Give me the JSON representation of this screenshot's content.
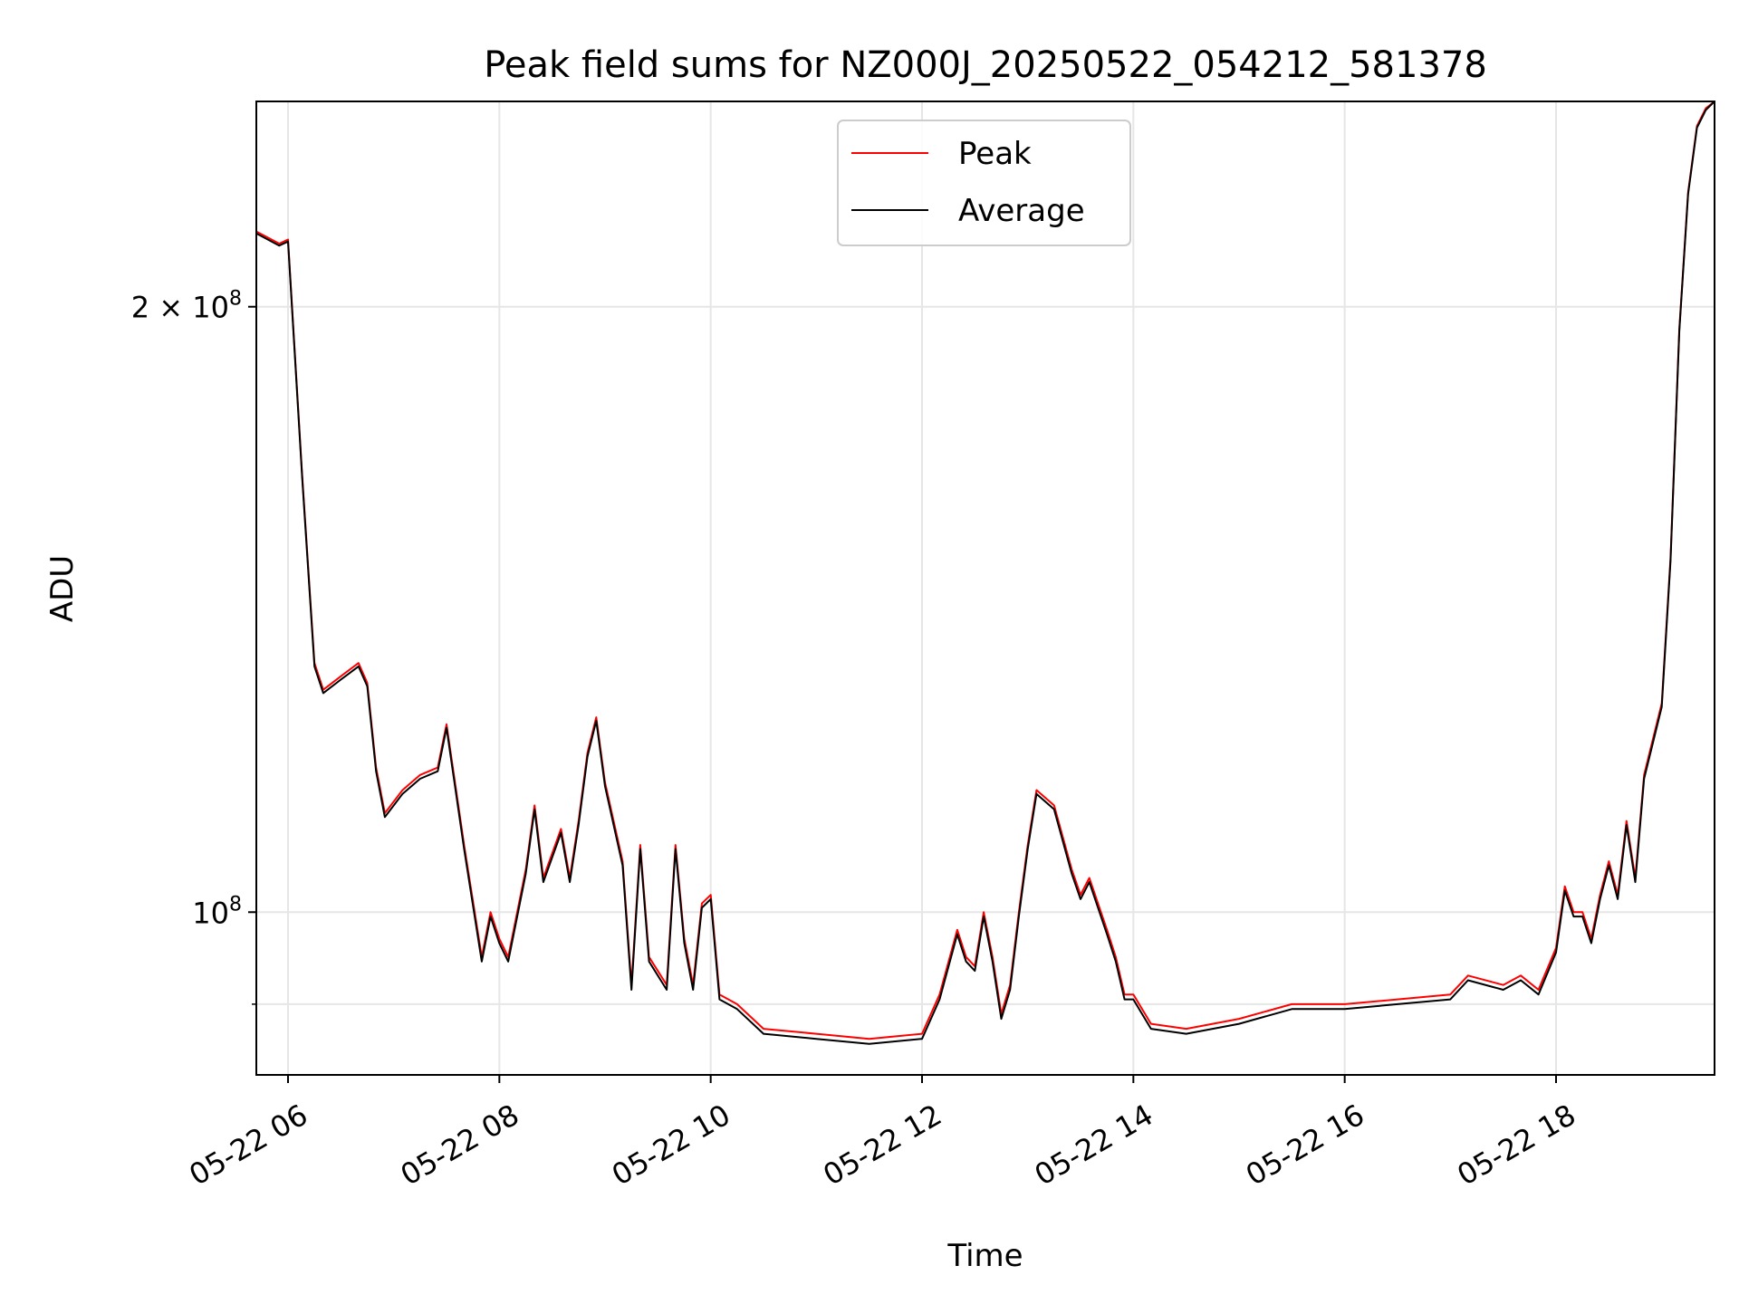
{
  "chart_data": {
    "type": "line",
    "title": "Peak field sums for NZ000J_20250522_054212_581378",
    "xlabel": "Time",
    "ylabel": "ADU",
    "y_scale": "log",
    "grid": true,
    "legend_position": "top-center",
    "xlim": [
      "2025-05-22 05:42",
      "2025-05-22 19:30"
    ],
    "ylim": [
      83000000,
      253000000
    ],
    "x_ticks": [
      {
        "t": "2025-05-22 06:00",
        "label": "05-22 06"
      },
      {
        "t": "2025-05-22 08:00",
        "label": "05-22 08"
      },
      {
        "t": "2025-05-22 10:00",
        "label": "05-22 10"
      },
      {
        "t": "2025-05-22 12:00",
        "label": "05-22 12"
      },
      {
        "t": "2025-05-22 14:00",
        "label": "05-22 14"
      },
      {
        "t": "2025-05-22 16:00",
        "label": "05-22 16"
      },
      {
        "t": "2025-05-22 18:00",
        "label": "05-22 18"
      }
    ],
    "y_major_ticks": [
      {
        "value": 100000000,
        "base": "10",
        "exp": "8"
      },
      {
        "value": 200000000,
        "coef": "2 × 10",
        "exp": "8"
      }
    ],
    "y_minor_ticks": [
      90000000
    ],
    "series": [
      {
        "name": "Peak",
        "color": "#ff0000",
        "points": [
          [
            "2025-05-22 05:42",
            218000000
          ],
          [
            "2025-05-22 05:55",
            215000000
          ],
          [
            "2025-05-22 06:00",
            216000000
          ],
          [
            "2025-05-22 06:08",
            165000000
          ],
          [
            "2025-05-22 06:15",
            133000000
          ],
          [
            "2025-05-22 06:20",
            129000000
          ],
          [
            "2025-05-22 06:30",
            131000000
          ],
          [
            "2025-05-22 06:40",
            133000000
          ],
          [
            "2025-05-22 06:45",
            130000000
          ],
          [
            "2025-05-22 06:50",
            118000000
          ],
          [
            "2025-05-22 06:55",
            112000000
          ],
          [
            "2025-05-22 07:05",
            115000000
          ],
          [
            "2025-05-22 07:15",
            117000000
          ],
          [
            "2025-05-22 07:25",
            118000000
          ],
          [
            "2025-05-22 07:30",
            124000000
          ],
          [
            "2025-05-22 07:40",
            108000000
          ],
          [
            "2025-05-22 07:50",
            95000000
          ],
          [
            "2025-05-22 07:55",
            100000000
          ],
          [
            "2025-05-22 08:00",
            97000000
          ],
          [
            "2025-05-22 08:05",
            95000000
          ],
          [
            "2025-05-22 08:15",
            105000000
          ],
          [
            "2025-05-22 08:20",
            113000000
          ],
          [
            "2025-05-22 08:25",
            104000000
          ],
          [
            "2025-05-22 08:35",
            110000000
          ],
          [
            "2025-05-22 08:40",
            104000000
          ],
          [
            "2025-05-22 08:45",
            111000000
          ],
          [
            "2025-05-22 08:50",
            120000000
          ],
          [
            "2025-05-22 08:55",
            125000000
          ],
          [
            "2025-05-22 09:00",
            116000000
          ],
          [
            "2025-05-22 09:10",
            106000000
          ],
          [
            "2025-05-22 09:15",
            92000000
          ],
          [
            "2025-05-22 09:20",
            108000000
          ],
          [
            "2025-05-22 09:25",
            95000000
          ],
          [
            "2025-05-22 09:35",
            92000000
          ],
          [
            "2025-05-22 09:40",
            108000000
          ],
          [
            "2025-05-22 09:45",
            97000000
          ],
          [
            "2025-05-22 09:50",
            92000000
          ],
          [
            "2025-05-22 09:55",
            101000000
          ],
          [
            "2025-05-22 10:00",
            102000000
          ],
          [
            "2025-05-22 10:05",
            91000000
          ],
          [
            "2025-05-22 10:15",
            90000000
          ],
          [
            "2025-05-22 10:30",
            87500000
          ],
          [
            "2025-05-22 11:00",
            87000000
          ],
          [
            "2025-05-22 11:30",
            86500000
          ],
          [
            "2025-05-22 12:00",
            87000000
          ],
          [
            "2025-05-22 12:10",
            91000000
          ],
          [
            "2025-05-22 12:20",
            98000000
          ],
          [
            "2025-05-22 12:25",
            95000000
          ],
          [
            "2025-05-22 12:30",
            94000000
          ],
          [
            "2025-05-22 12:35",
            100000000
          ],
          [
            "2025-05-22 12:40",
            95000000
          ],
          [
            "2025-05-22 12:45",
            89000000
          ],
          [
            "2025-05-22 12:50",
            92000000
          ],
          [
            "2025-05-22 12:55",
            100000000
          ],
          [
            "2025-05-22 13:00",
            108000000
          ],
          [
            "2025-05-22 13:05",
            115000000
          ],
          [
            "2025-05-22 13:15",
            113000000
          ],
          [
            "2025-05-22 13:25",
            105000000
          ],
          [
            "2025-05-22 13:30",
            102000000
          ],
          [
            "2025-05-22 13:35",
            104000000
          ],
          [
            "2025-05-22 13:45",
            98000000
          ],
          [
            "2025-05-22 13:50",
            95000000
          ],
          [
            "2025-05-22 13:55",
            91000000
          ],
          [
            "2025-05-22 14:00",
            91000000
          ],
          [
            "2025-05-22 14:10",
            88000000
          ],
          [
            "2025-05-22 14:30",
            87500000
          ],
          [
            "2025-05-22 15:00",
            88500000
          ],
          [
            "2025-05-22 15:30",
            90000000
          ],
          [
            "2025-05-22 16:00",
            90000000
          ],
          [
            "2025-05-22 16:30",
            90500000
          ],
          [
            "2025-05-22 17:00",
            91000000
          ],
          [
            "2025-05-22 17:10",
            93000000
          ],
          [
            "2025-05-22 17:30",
            92000000
          ],
          [
            "2025-05-22 17:40",
            93000000
          ],
          [
            "2025-05-22 17:50",
            91500000
          ],
          [
            "2025-05-22 18:00",
            96000000
          ],
          [
            "2025-05-22 18:05",
            103000000
          ],
          [
            "2025-05-22 18:10",
            100000000
          ],
          [
            "2025-05-22 18:15",
            100000000
          ],
          [
            "2025-05-22 18:20",
            97000000
          ],
          [
            "2025-05-22 18:25",
            102000000
          ],
          [
            "2025-05-22 18:30",
            106000000
          ],
          [
            "2025-05-22 18:35",
            102000000
          ],
          [
            "2025-05-22 18:40",
            111000000
          ],
          [
            "2025-05-22 18:45",
            104000000
          ],
          [
            "2025-05-22 18:50",
            117000000
          ],
          [
            "2025-05-22 19:00",
            127000000
          ],
          [
            "2025-05-22 19:05",
            150000000
          ],
          [
            "2025-05-22 19:10",
            195000000
          ],
          [
            "2025-05-22 19:15",
            228000000
          ],
          [
            "2025-05-22 19:20",
            246000000
          ],
          [
            "2025-05-22 19:25",
            251000000
          ],
          [
            "2025-05-22 19:30",
            253000000
          ]
        ]
      },
      {
        "name": "Average",
        "color": "#000000",
        "points": [
          [
            "2025-05-22 05:42",
            217500000
          ],
          [
            "2025-05-22 05:55",
            214500000
          ],
          [
            "2025-05-22 06:00",
            215500000
          ],
          [
            "2025-05-22 06:08",
            164500000
          ],
          [
            "2025-05-22 06:15",
            132500000
          ],
          [
            "2025-05-22 06:20",
            128500000
          ],
          [
            "2025-05-22 06:30",
            130500000
          ],
          [
            "2025-05-22 06:40",
            132500000
          ],
          [
            "2025-05-22 06:45",
            129500000
          ],
          [
            "2025-05-22 06:50",
            117500000
          ],
          [
            "2025-05-22 06:55",
            111500000
          ],
          [
            "2025-05-22 07:05",
            114500000
          ],
          [
            "2025-05-22 07:15",
            116500000
          ],
          [
            "2025-05-22 07:25",
            117500000
          ],
          [
            "2025-05-22 07:30",
            123500000
          ],
          [
            "2025-05-22 07:40",
            107500000
          ],
          [
            "2025-05-22 07:50",
            94500000
          ],
          [
            "2025-05-22 07:55",
            99500000
          ],
          [
            "2025-05-22 08:00",
            96500000
          ],
          [
            "2025-05-22 08:05",
            94500000
          ],
          [
            "2025-05-22 08:15",
            104500000
          ],
          [
            "2025-05-22 08:20",
            112500000
          ],
          [
            "2025-05-22 08:25",
            103500000
          ],
          [
            "2025-05-22 08:35",
            109500000
          ],
          [
            "2025-05-22 08:40",
            103500000
          ],
          [
            "2025-05-22 08:45",
            110500000
          ],
          [
            "2025-05-22 08:50",
            119500000
          ],
          [
            "2025-05-22 08:55",
            124500000
          ],
          [
            "2025-05-22 09:00",
            115500000
          ],
          [
            "2025-05-22 09:10",
            105500000
          ],
          [
            "2025-05-22 09:15",
            91500000
          ],
          [
            "2025-05-22 09:20",
            107500000
          ],
          [
            "2025-05-22 09:25",
            94500000
          ],
          [
            "2025-05-22 09:35",
            91500000
          ],
          [
            "2025-05-22 09:40",
            107500000
          ],
          [
            "2025-05-22 09:45",
            96500000
          ],
          [
            "2025-05-22 09:50",
            91500000
          ],
          [
            "2025-05-22 09:55",
            100500000
          ],
          [
            "2025-05-22 10:00",
            101500000
          ],
          [
            "2025-05-22 10:05",
            90500000
          ],
          [
            "2025-05-22 10:15",
            89500000
          ],
          [
            "2025-05-22 10:30",
            87000000
          ],
          [
            "2025-05-22 11:00",
            86500000
          ],
          [
            "2025-05-22 11:30",
            86000000
          ],
          [
            "2025-05-22 12:00",
            86500000
          ],
          [
            "2025-05-22 12:10",
            90500000
          ],
          [
            "2025-05-22 12:20",
            97500000
          ],
          [
            "2025-05-22 12:25",
            94500000
          ],
          [
            "2025-05-22 12:30",
            93500000
          ],
          [
            "2025-05-22 12:35",
            99500000
          ],
          [
            "2025-05-22 12:40",
            94500000
          ],
          [
            "2025-05-22 12:45",
            88500000
          ],
          [
            "2025-05-22 12:50",
            91500000
          ],
          [
            "2025-05-22 12:55",
            99500000
          ],
          [
            "2025-05-22 13:00",
            107500000
          ],
          [
            "2025-05-22 13:05",
            114500000
          ],
          [
            "2025-05-22 13:15",
            112500000
          ],
          [
            "2025-05-22 13:25",
            104500000
          ],
          [
            "2025-05-22 13:30",
            101500000
          ],
          [
            "2025-05-22 13:35",
            103500000
          ],
          [
            "2025-05-22 13:45",
            97500000
          ],
          [
            "2025-05-22 13:50",
            94500000
          ],
          [
            "2025-05-22 13:55",
            90500000
          ],
          [
            "2025-05-22 14:00",
            90500000
          ],
          [
            "2025-05-22 14:10",
            87500000
          ],
          [
            "2025-05-22 14:30",
            87000000
          ],
          [
            "2025-05-22 15:00",
            88000000
          ],
          [
            "2025-05-22 15:30",
            89500000
          ],
          [
            "2025-05-22 16:00",
            89500000
          ],
          [
            "2025-05-22 16:30",
            90000000
          ],
          [
            "2025-05-22 17:00",
            90500000
          ],
          [
            "2025-05-22 17:10",
            92500000
          ],
          [
            "2025-05-22 17:30",
            91500000
          ],
          [
            "2025-05-22 17:40",
            92500000
          ],
          [
            "2025-05-22 17:50",
            91000000
          ],
          [
            "2025-05-22 18:00",
            95500000
          ],
          [
            "2025-05-22 18:05",
            102500000
          ],
          [
            "2025-05-22 18:10",
            99500000
          ],
          [
            "2025-05-22 18:15",
            99500000
          ],
          [
            "2025-05-22 18:20",
            96500000
          ],
          [
            "2025-05-22 18:25",
            101500000
          ],
          [
            "2025-05-22 18:30",
            105500000
          ],
          [
            "2025-05-22 18:35",
            101500000
          ],
          [
            "2025-05-22 18:40",
            110500000
          ],
          [
            "2025-05-22 18:45",
            103500000
          ],
          [
            "2025-05-22 18:50",
            116500000
          ],
          [
            "2025-05-22 19:00",
            126500000
          ],
          [
            "2025-05-22 19:05",
            149500000
          ],
          [
            "2025-05-22 19:10",
            194500000
          ],
          [
            "2025-05-22 19:15",
            227500000
          ],
          [
            "2025-05-22 19:20",
            245500000
          ],
          [
            "2025-05-22 19:25",
            250500000
          ],
          [
            "2025-05-22 19:30",
            253000000
          ]
        ]
      }
    ]
  }
}
